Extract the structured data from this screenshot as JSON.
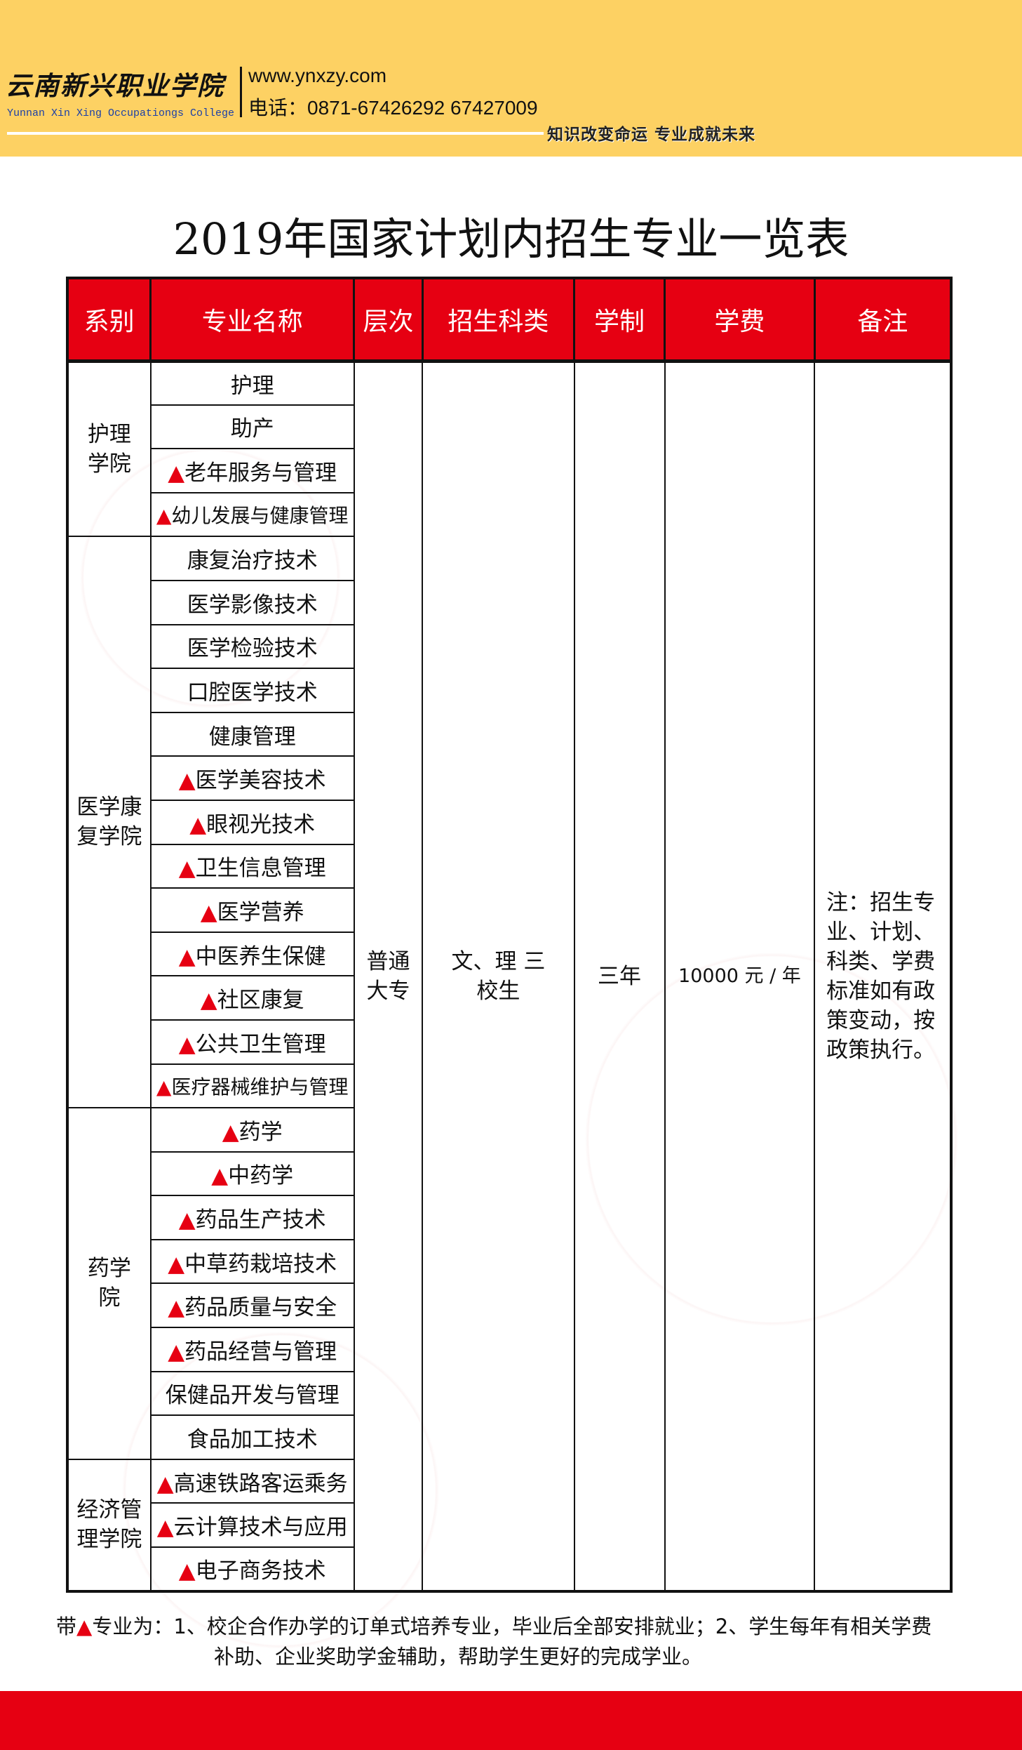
{
  "header": {
    "logo_cn": "云南新兴职业学院",
    "logo_en": "Yunnan Xin Xing Occupationgs College",
    "website": "www.ynxzy.com",
    "phone": "电话：0871-67426292  67427009",
    "slogan": "知识改变命运  专业成就未来",
    "bg_color": "#fdd163"
  },
  "title": "2019年国家计划内招生专业一览表",
  "table": {
    "headers": [
      "系别",
      "专业名称",
      "层次",
      "招生科类",
      "学制",
      "学费",
      "备注"
    ],
    "header_color": "#e60012",
    "groups": [
      {
        "dept": "护理学院",
        "majors": [
          {
            "name": "护理",
            "mark": false
          },
          {
            "name": "助产",
            "mark": false
          },
          {
            "name": "老年服务与管理",
            "mark": true
          },
          {
            "name": "幼儿发展与健康管理",
            "mark": true
          }
        ]
      },
      {
        "dept": "医学康复学院",
        "majors": [
          {
            "name": "康复治疗技术",
            "mark": false
          },
          {
            "name": "医学影像技术",
            "mark": false
          },
          {
            "name": "医学检验技术",
            "mark": false
          },
          {
            "name": "口腔医学技术",
            "mark": false
          },
          {
            "name": "健康管理",
            "mark": false
          },
          {
            "name": "医学美容技术",
            "mark": true
          },
          {
            "name": "眼视光技术",
            "mark": true
          },
          {
            "name": "卫生信息管理",
            "mark": true
          },
          {
            "name": "医学营养",
            "mark": true
          },
          {
            "name": "中医养生保健",
            "mark": true
          },
          {
            "name": "社区康复",
            "mark": true
          },
          {
            "name": "公共卫生管理",
            "mark": true
          },
          {
            "name": "医疗器械维护与管理",
            "mark": true
          }
        ]
      },
      {
        "dept": "药学院",
        "majors": [
          {
            "name": "药学",
            "mark": true
          },
          {
            "name": "中药学",
            "mark": true
          },
          {
            "name": "药品生产技术",
            "mark": true
          },
          {
            "name": "中草药栽培技术",
            "mark": true
          },
          {
            "name": "药品质量与安全",
            "mark": true
          },
          {
            "name": "药品经营与管理",
            "mark": true
          },
          {
            "name": "保健品开发与管理",
            "mark": false
          },
          {
            "name": "食品加工技术",
            "mark": false
          }
        ]
      },
      {
        "dept": "经济管理学院",
        "majors": [
          {
            "name": "高速铁路客运乘务",
            "mark": true
          },
          {
            "name": "云计算技术与应用",
            "mark": true
          },
          {
            "name": "电子商务技术",
            "mark": true
          }
        ]
      }
    ],
    "level": "普通大专",
    "category": "文、理 三校生",
    "duration": "三年",
    "tuition": "10000 元 / 年",
    "remark": "注：招生专业、计划、科类、学费标准如有政策变动，按政策执行。"
  },
  "note": {
    "prefix": "带",
    "mark": "▲",
    "line1": "专业为：1、校企合作办学的订单式培养专业，毕业后全部安排就业；2、学生每年有相关学费",
    "line2": "补助、企业奖助学金辅助，帮助学生更好的完成学业。"
  },
  "footer_color": "#e60012"
}
